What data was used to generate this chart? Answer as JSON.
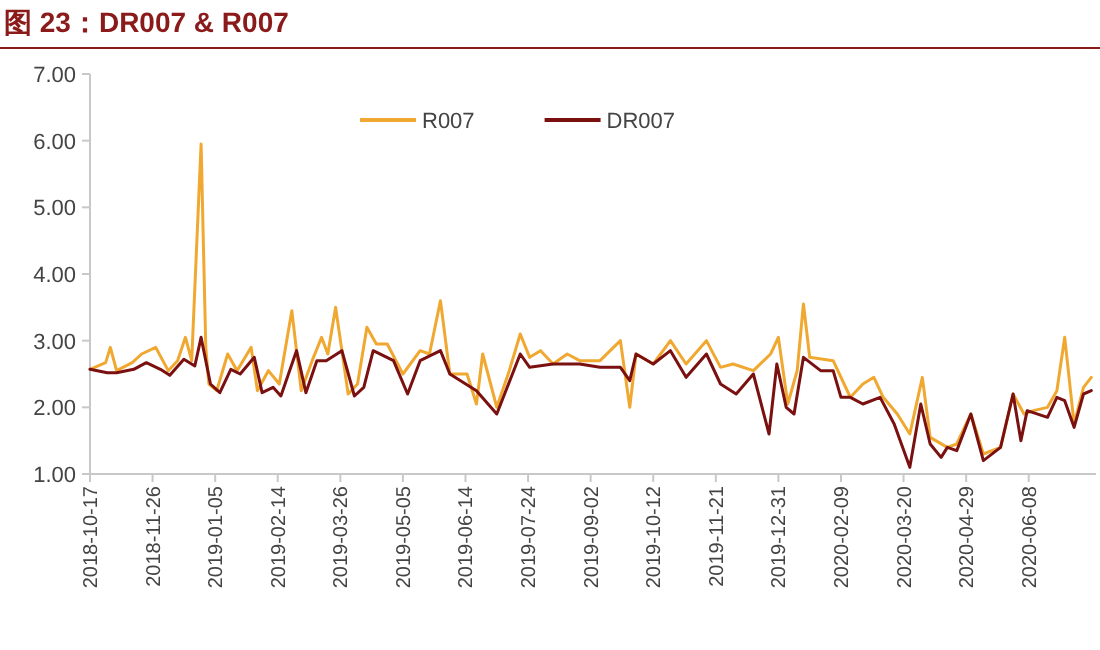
{
  "chart_data": {
    "type": "line",
    "title": "图 23：DR007 & R007",
    "xlim": [
      "2018-10-17",
      "2020-07-21"
    ],
    "xticks": [
      "2018-10-17",
      "2018-11-26",
      "2019-01-05",
      "2019-02-14",
      "2019-03-26",
      "2019-05-05",
      "2019-06-14",
      "2019-07-24",
      "2019-09-02",
      "2019-10-12",
      "2019-11-21",
      "2019-12-31",
      "2020-02-09",
      "2020-03-20",
      "2020-04-29",
      "2020-06-08"
    ],
    "ylim": [
      1,
      7
    ],
    "yticks": [
      {
        "value": 1,
        "label": "1.00"
      },
      {
        "value": 2,
        "label": "2.00"
      },
      {
        "value": 3,
        "label": "3.00"
      },
      {
        "value": 4,
        "label": "4.00"
      },
      {
        "value": 5,
        "label": "5.00"
      },
      {
        "value": 6,
        "label": "6.00"
      },
      {
        "value": 7,
        "label": "7.00"
      }
    ],
    "grid": false,
    "legend": "top",
    "marker": "none",
    "line_style": "solid",
    "series": [
      {
        "name": "R007",
        "color": "#f0a830",
        "x": [
          "2018-10-17",
          "2018-10-27",
          "2018-10-30",
          "2018-11-03",
          "2018-11-13",
          "2018-11-19",
          "2018-11-28",
          "2018-12-06",
          "2018-12-12",
          "2018-12-17",
          "2018-12-21",
          "2018-12-27",
          "2018-12-30",
          "2019-01-01",
          "2019-01-06",
          "2019-01-13",
          "2019-01-19",
          "2019-01-28",
          "2019-02-01",
          "2019-02-08",
          "2019-02-15",
          "2019-02-23",
          "2019-03-01",
          "2019-03-08",
          "2019-03-14",
          "2019-03-18",
          "2019-03-23",
          "2019-03-31",
          "2019-04-06",
          "2019-04-12",
          "2019-04-18",
          "2019-04-25",
          "2019-05-05",
          "2019-05-16",
          "2019-05-22",
          "2019-05-29",
          "2019-06-04",
          "2019-06-15",
          "2019-06-21",
          "2019-06-25",
          "2019-07-04",
          "2019-07-12",
          "2019-07-19",
          "2019-07-25",
          "2019-08-01",
          "2019-08-09",
          "2019-08-18",
          "2019-08-26",
          "2019-09-08",
          "2019-09-21",
          "2019-09-27",
          "2019-10-01",
          "2019-10-12",
          "2019-10-23",
          "2019-11-02",
          "2019-11-15",
          "2019-11-24",
          "2019-12-02",
          "2019-12-15",
          "2019-12-26",
          "2019-12-31",
          "2020-01-06",
          "2020-01-12",
          "2020-01-16",
          "2020-01-20",
          "2020-02-04",
          "2020-02-11",
          "2020-02-15",
          "2020-02-23",
          "2020-03-01",
          "2020-03-07",
          "2020-03-16",
          "2020-03-24",
          "2020-04-01",
          "2020-04-06",
          "2020-04-17",
          "2020-04-23",
          "2020-05-02",
          "2020-05-10",
          "2020-05-21",
          "2020-05-29",
          "2020-06-05",
          "2020-06-11",
          "2020-06-20",
          "2020-06-26",
          "2020-07-01",
          "2020-07-07",
          "2020-07-13",
          "2020-07-18"
        ],
        "values": [
          2.57,
          2.67,
          2.9,
          2.55,
          2.67,
          2.8,
          2.9,
          2.55,
          2.7,
          3.05,
          2.7,
          5.95,
          2.9,
          2.35,
          2.25,
          2.8,
          2.55,
          2.9,
          2.25,
          2.55,
          2.35,
          3.45,
          2.25,
          2.7,
          3.05,
          2.8,
          3.5,
          2.2,
          2.35,
          3.2,
          2.95,
          2.95,
          2.5,
          2.85,
          2.8,
          3.6,
          2.5,
          2.5,
          2.05,
          2.8,
          2.0,
          2.55,
          3.1,
          2.75,
          2.85,
          2.65,
          2.8,
          2.7,
          2.7,
          3.0,
          2.0,
          2.8,
          2.65,
          3.0,
          2.65,
          3.0,
          2.6,
          2.65,
          2.55,
          2.8,
          3.05,
          2.05,
          2.55,
          3.55,
          2.75,
          2.7,
          2.35,
          2.15,
          2.35,
          2.45,
          2.15,
          1.9,
          1.6,
          2.45,
          1.55,
          1.4,
          1.45,
          1.9,
          1.3,
          1.4,
          2.2,
          1.9,
          1.95,
          2.0,
          2.25,
          3.05,
          1.75,
          2.3,
          2.45
        ]
      },
      {
        "name": "DR007",
        "color": "#7b1010",
        "x": [
          "2018-10-17",
          "2018-10-28",
          "2018-11-03",
          "2018-11-14",
          "2018-11-22",
          "2018-12-01",
          "2018-12-07",
          "2018-12-16",
          "2018-12-23",
          "2018-12-27",
          "2019-01-02",
          "2019-01-08",
          "2019-01-15",
          "2019-01-21",
          "2019-01-30",
          "2019-02-04",
          "2019-02-11",
          "2019-02-16",
          "2019-02-26",
          "2019-03-04",
          "2019-03-11",
          "2019-03-17",
          "2019-03-27",
          "2019-04-04",
          "2019-04-10",
          "2019-04-16",
          "2019-04-29",
          "2019-05-08",
          "2019-05-16",
          "2019-05-29",
          "2019-06-04",
          "2019-06-21",
          "2019-07-04",
          "2019-07-19",
          "2019-07-25",
          "2019-08-09",
          "2019-08-26",
          "2019-09-08",
          "2019-09-21",
          "2019-09-27",
          "2019-10-01",
          "2019-10-12",
          "2019-10-23",
          "2019-11-02",
          "2019-11-15",
          "2019-11-24",
          "2019-12-04",
          "2019-12-15",
          "2019-12-25",
          "2019-12-30",
          "2020-01-05",
          "2020-01-10",
          "2020-01-16",
          "2020-01-27",
          "2020-02-04",
          "2020-02-09",
          "2020-02-15",
          "2020-02-23",
          "2020-03-05",
          "2020-03-14",
          "2020-03-24",
          "2020-03-31",
          "2020-04-06",
          "2020-04-13",
          "2020-04-17",
          "2020-04-23",
          "2020-05-02",
          "2020-05-10",
          "2020-05-21",
          "2020-05-29",
          "2020-06-03",
          "2020-06-07",
          "2020-06-20",
          "2020-06-26",
          "2020-07-01",
          "2020-07-07",
          "2020-07-13",
          "2020-07-18"
        ],
        "values": [
          2.57,
          2.52,
          2.52,
          2.57,
          2.67,
          2.57,
          2.48,
          2.72,
          2.62,
          3.05,
          2.35,
          2.22,
          2.57,
          2.5,
          2.75,
          2.22,
          2.3,
          2.17,
          2.85,
          2.22,
          2.7,
          2.7,
          2.85,
          2.17,
          2.3,
          2.85,
          2.7,
          2.2,
          2.7,
          2.85,
          2.5,
          2.25,
          1.9,
          2.8,
          2.6,
          2.65,
          2.65,
          2.6,
          2.6,
          2.4,
          2.8,
          2.65,
          2.85,
          2.45,
          2.8,
          2.35,
          2.2,
          2.5,
          1.6,
          2.65,
          2.0,
          1.9,
          2.75,
          2.55,
          2.55,
          2.15,
          2.15,
          2.05,
          2.15,
          1.75,
          1.1,
          2.05,
          1.45,
          1.25,
          1.4,
          1.35,
          1.9,
          1.2,
          1.4,
          2.2,
          1.5,
          1.95,
          1.85,
          2.15,
          2.1,
          1.7,
          2.2,
          2.25
        ]
      }
    ]
  }
}
